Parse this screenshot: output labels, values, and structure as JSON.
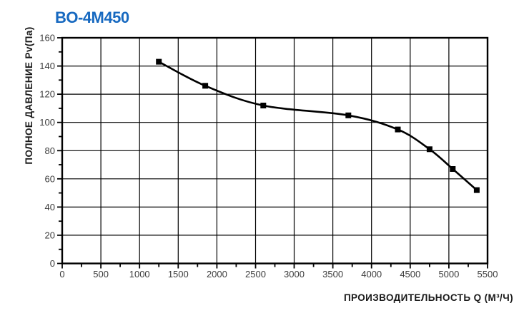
{
  "title": "BO-4M450",
  "colors": {
    "title": "#1769c0",
    "line": "#000000",
    "grid": "#000000",
    "tick_label": "#3c3c3c"
  },
  "chart_data": {
    "type": "line",
    "title": "BO-4M450",
    "xlabel": "ПРОИЗВОДИТЕЛЬНОСТЬ Q (М³/Ч)",
    "ylabel": "ПОЛНОЕ ДАВЛЕНИЕ Pv(Па)",
    "xlim": [
      0,
      5500
    ],
    "ylim": [
      0,
      160
    ],
    "xticks": [
      0,
      500,
      1000,
      1500,
      2000,
      2500,
      3000,
      3500,
      4000,
      4500,
      5000,
      5500
    ],
    "yticks": [
      0,
      20,
      40,
      60,
      80,
      100,
      120,
      140,
      160
    ],
    "x_minor_step": 250,
    "y_minor_step": 10,
    "grid": true,
    "legend": false,
    "series": [
      {
        "name": "BO-4M450",
        "marker": "square",
        "color": "#000000",
        "points": [
          [
            1250,
            143
          ],
          [
            1850,
            126
          ],
          [
            2600,
            112
          ],
          [
            3700,
            105
          ],
          [
            4340,
            95
          ],
          [
            4750,
            81
          ],
          [
            5050,
            67
          ],
          [
            5360,
            52
          ]
        ]
      }
    ]
  }
}
